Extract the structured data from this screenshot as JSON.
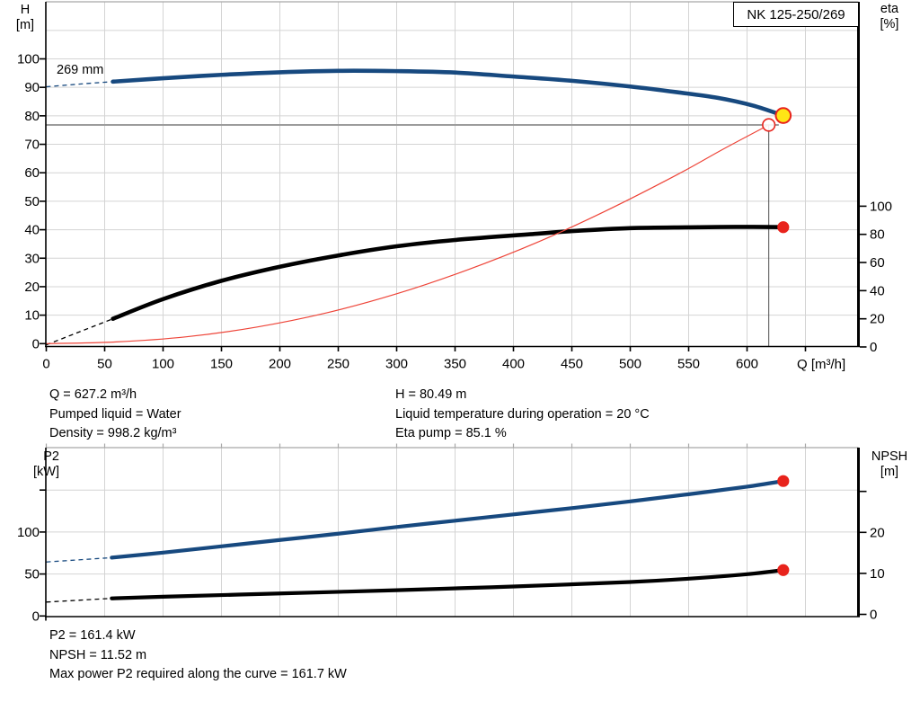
{
  "title_box": {
    "label": "NK 125-250/269"
  },
  "top_chart": {
    "curve_label": "269 mm",
    "left_axis_title": [
      "H",
      "[m]"
    ],
    "right_axis_title": [
      "eta",
      "[%]"
    ],
    "x_axis_title": "Q [m³/h]"
  },
  "bottom_chart": {
    "left_axis_title": [
      "P2",
      "[kW]"
    ],
    "right_axis_title": [
      "NPSH",
      "[m]"
    ]
  },
  "top_info": {
    "q": "Q = 627.2 m³/h",
    "pumped_liquid": "Pumped liquid = Water",
    "density": "Density = 998.2 kg/m³",
    "h": "H = 80.49 m",
    "liquid_temp": "Liquid temperature during operation = 20 °C",
    "eta_pump": "Eta pump = 85.1 %"
  },
  "bottom_info": {
    "p2": "P2 = 161.4 kW",
    "npsh": "NPSH = 11.52 m",
    "max_power": "Max power P2 required along the curve = 161.7 kW"
  },
  "colors": {
    "curve_blue": "#17497f",
    "curve_black": "#000000",
    "curve_red": "#ee4438",
    "marker_red": "#e8231c",
    "marker_yellow": "#ffe516",
    "grid": "#d4d4d4",
    "border_gray": "#a8a8a8",
    "duty_gray": "#9c9c9c",
    "crosshair_dark": "#4d4d4d",
    "axis_black": "#000000"
  },
  "chart_data": [
    {
      "id": "qh_eta",
      "type": "line",
      "title": "Pump performance curve NK 125-250/269",
      "xlabel": "Q [m³/h]",
      "ylabel_left": "H [m]",
      "ylabel_right": "eta [%]",
      "xlim": [
        0,
        697
      ],
      "ylim_left": [
        0,
        120
      ],
      "ylim_right": [
        0,
        100
      ],
      "x_ticks_labeled": [
        0,
        50,
        100,
        150,
        200,
        250,
        300,
        350,
        400,
        450,
        500,
        550,
        600
      ],
      "x_ticks_unlabeled": [
        650
      ],
      "y_ticks_left": [
        0,
        10,
        20,
        30,
        40,
        50,
        60,
        70,
        80,
        90,
        100
      ],
      "y_grid_values": [
        10,
        20,
        30,
        40,
        50,
        60,
        70,
        80,
        90,
        100,
        110
      ],
      "y_ticks_right": [
        0,
        20,
        40,
        60,
        80,
        100
      ],
      "grid": true,
      "series": [
        {
          "name": "head-curve-269mm",
          "axis": "left",
          "color": "curve_blue",
          "width": 4.6,
          "lead_dashed": [
            [
              0,
              90.2
            ],
            [
              30,
              91.2
            ],
            [
              57,
              92.0
            ]
          ],
          "points": [
            [
              57,
              92.0
            ],
            [
              100,
              93.2
            ],
            [
              150,
              94.4
            ],
            [
              200,
              95.3
            ],
            [
              250,
              95.8
            ],
            [
              300,
              95.7
            ],
            [
              350,
              95.2
            ],
            [
              400,
              93.8
            ],
            [
              450,
              92.3
            ],
            [
              500,
              90.3
            ],
            [
              540,
              88.3
            ],
            [
              575,
              86.3
            ],
            [
              605,
              83.6
            ],
            [
              631,
              80.1
            ]
          ]
        },
        {
          "name": "efficiency-curve",
          "axis": "right",
          "color": "curve_black",
          "width": 4.6,
          "lead_dashed": [
            [
              0,
              1.5
            ],
            [
              57,
              20
            ]
          ],
          "points": [
            [
              57,
              20
            ],
            [
              100,
              34
            ],
            [
              150,
              47
            ],
            [
              200,
              57
            ],
            [
              250,
              65
            ],
            [
              300,
              71.5
            ],
            [
              350,
              76
            ],
            [
              421,
              80.5
            ],
            [
              450,
              82.3
            ],
            [
              500,
              84.4
            ],
            [
              550,
              85.0
            ],
            [
              590,
              85.3
            ],
            [
              631,
              85.1
            ]
          ]
        },
        {
          "name": "system-curve",
          "axis": "left",
          "color": "curve_red",
          "width": 1.2,
          "points": [
            [
              0,
              0
            ],
            [
              60,
              0.6
            ],
            [
              120,
              2.4
            ],
            [
              180,
              5.8
            ],
            [
              240,
              10.8
            ],
            [
              300,
              17.5
            ],
            [
              360,
              25.8
            ],
            [
              420,
              35.5
            ],
            [
              480,
              46.8
            ],
            [
              540,
              59.3
            ],
            [
              580,
              68.4
            ],
            [
              618.6,
              76.8
            ]
          ]
        }
      ],
      "markers": [
        {
          "name": "operating-point",
          "style": "filled-yellow",
          "axis": "left",
          "q": 631,
          "value": 80.1,
          "interactable": true
        },
        {
          "name": "requested-duty-point",
          "style": "open-red",
          "axis": "left",
          "q": 618.6,
          "value": 76.8,
          "interactable": true
        },
        {
          "name": "efficiency-point",
          "style": "filled-red",
          "axis": "right",
          "q": 631,
          "value": 85.1,
          "interactable": false
        }
      ],
      "crosshair": {
        "q": 618.6,
        "h": 76.8
      },
      "operating_values": {
        "Q_m3h": 627.2,
        "H_m": 80.49,
        "eta_pct": 85.1,
        "impeller_mm": 269
      }
    },
    {
      "id": "p2_npsh",
      "type": "line",
      "title": "Power and NPSH curves",
      "xlabel": "Q [m³/h]",
      "ylabel_left": "P2 [kW]",
      "ylabel_right": "NPSH [m]",
      "xlim": [
        0,
        697
      ],
      "ylim_left": [
        0,
        200
      ],
      "ylim_right": [
        0,
        41
      ],
      "x_ticks_labeled": [],
      "x_ticks_unlabeled": [],
      "y_ticks_left": [
        0,
        50,
        100
      ],
      "y_ticks_left_unlabeled": [
        150
      ],
      "y_grid_values": [
        50,
        100,
        150
      ],
      "y_ticks_right": [
        0,
        10,
        20
      ],
      "y_ticks_right_unlabeled": [
        30
      ],
      "grid": true,
      "series": [
        {
          "name": "p2-curve",
          "axis": "left",
          "color": "curve_blue",
          "width": 4.2,
          "lead_dashed": [
            [
              0,
              64.3
            ],
            [
              56,
              69.5
            ]
          ],
          "points": [
            [
              56,
              69.5
            ],
            [
              100,
              75.5
            ],
            [
              150,
              83
            ],
            [
              200,
              90.5
            ],
            [
              250,
              98
            ],
            [
              300,
              106
            ],
            [
              350,
              113.5
            ],
            [
              400,
              121
            ],
            [
              450,
              128.5
            ],
            [
              500,
              136.5
            ],
            [
              550,
              145
            ],
            [
              600,
              154
            ],
            [
              631,
              160.7
            ]
          ]
        },
        {
          "name": "npsh-curve",
          "axis": "right",
          "color": "curve_black",
          "width": 4.2,
          "lead_dashed": [
            [
              0,
              3.0
            ],
            [
              56,
              3.9
            ]
          ],
          "points": [
            [
              56,
              3.9
            ],
            [
              100,
              4.3
            ],
            [
              200,
              5.1
            ],
            [
              300,
              5.9
            ],
            [
              400,
              6.8
            ],
            [
              500,
              7.9
            ],
            [
              550,
              8.7
            ],
            [
              600,
              9.8
            ],
            [
              631,
              10.8
            ]
          ]
        }
      ],
      "markers": [
        {
          "name": "p2-end-point",
          "style": "filled-red",
          "axis": "left",
          "q": 631,
          "value": 160.7,
          "interactable": false
        },
        {
          "name": "npsh-end-point",
          "style": "filled-red",
          "axis": "right",
          "q": 631,
          "value": 10.8,
          "interactable": false
        }
      ],
      "operating_values": {
        "P2_kW": 161.4,
        "NPSH_m": 11.52,
        "P2_max_along_curve_kW": 161.7
      }
    }
  ]
}
